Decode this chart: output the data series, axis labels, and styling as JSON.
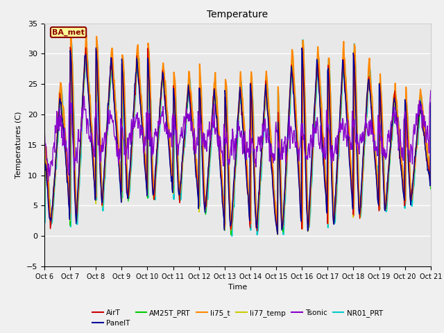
{
  "title": "Temperature",
  "xlabel": "Time",
  "ylabel": "Temperatures (C)",
  "ylim": [
    -5,
    35
  ],
  "annotation": "BA_met",
  "x_tick_labels": [
    "Oct 6",
    "Oct 7",
    "Oct 8",
    "Oct 9",
    "Oct 10",
    "Oct 11",
    "Oct 12",
    "Oct 13",
    "Oct 14",
    "Oct 15",
    "Oct 16",
    "Oct 17",
    "Oct 18",
    "Oct 19",
    "Oct 20",
    "Oct 21"
  ],
  "series_colors": {
    "AirT": "#cc0000",
    "PanelT": "#000099",
    "AM25T_PRT": "#00cc00",
    "li75_t": "#ff8800",
    "li77_temp": "#cccc00",
    "Tsonic": "#8800cc",
    "NR01_PRT": "#00cccc"
  },
  "plot_bg_color": "#e8e8e8",
  "legend_entries": [
    "AirT",
    "PanelT",
    "AM25T_PRT",
    "li75_t",
    "li77_temp",
    "Tsonic",
    "NR01_PRT"
  ]
}
